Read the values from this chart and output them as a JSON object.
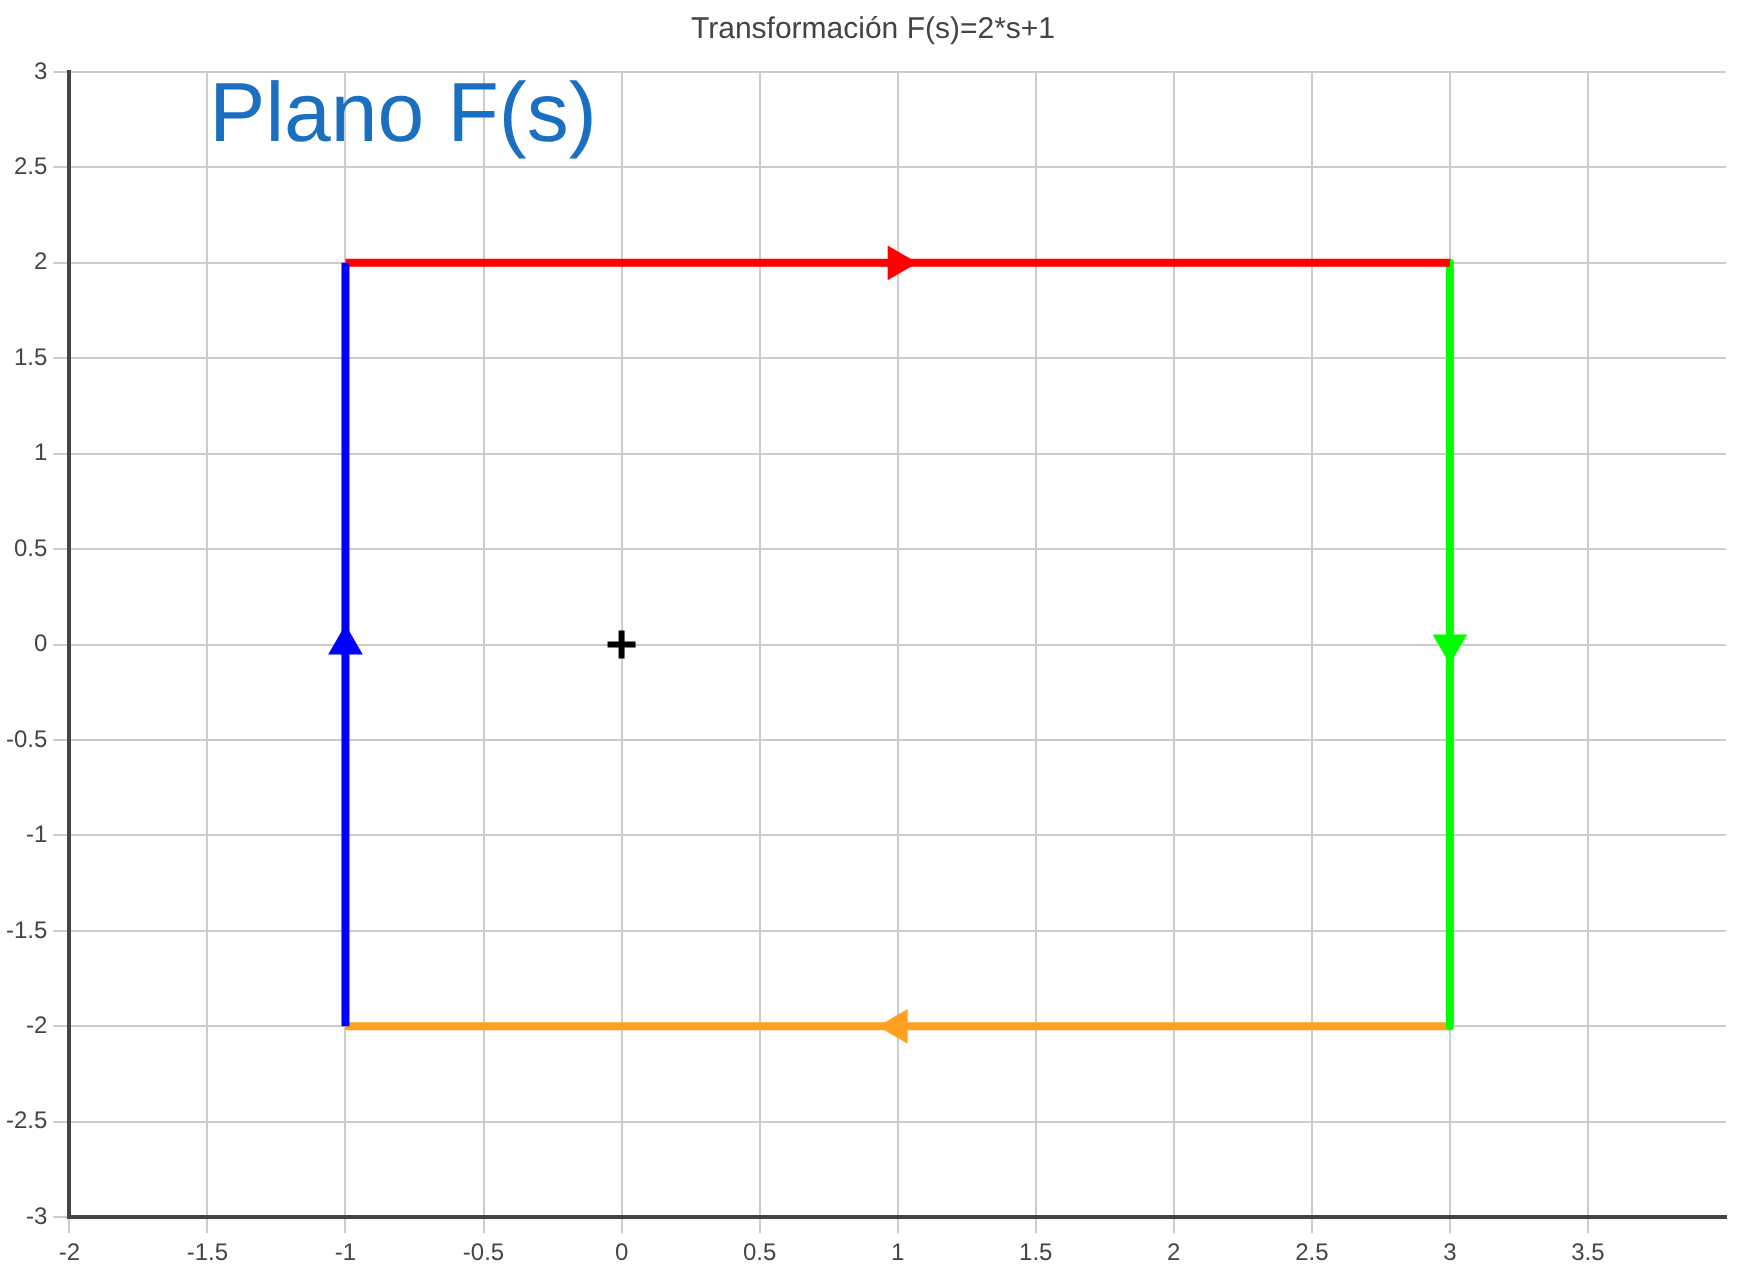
{
  "chart_data": {
    "type": "line",
    "title": "Transformación F(s)=2*s+1",
    "annotations": [
      "Plano F(s)"
    ],
    "xlim": [
      -2,
      4
    ],
    "xticks": [
      -2,
      -1.5,
      -1,
      -0.5,
      0,
      0.5,
      1,
      1.5,
      2,
      2.5,
      3,
      3.5
    ],
    "ylim": [
      -3,
      3
    ],
    "yticks": [
      -3,
      -2.5,
      -2,
      -1.5,
      -1,
      -0.5,
      0,
      0.5,
      1,
      1.5,
      2,
      2.5,
      3
    ],
    "grid": true,
    "legend": false,
    "series": [
      {
        "color": "#0000ff",
        "x": [
          -1,
          -1
        ],
        "values": [
          -2,
          2
        ]
      },
      {
        "color": "#ff0000",
        "x": [
          -1,
          3
        ],
        "values": [
          2,
          2
        ]
      },
      {
        "color": "#00ff00",
        "x": [
          3,
          3
        ],
        "values": [
          2,
          -2
        ]
      },
      {
        "color": "#ffa020",
        "x": [
          3,
          -1
        ],
        "values": [
          -2,
          -2
        ]
      },
      {
        "type": "scatter",
        "color": "#0000ff",
        "marker": "triangle",
        "x": [
          -1
        ],
        "values": [
          0
        ]
      },
      {
        "type": "scatter",
        "color": "#ff0000",
        "marker": "triangle",
        "x": [
          1
        ],
        "values": [
          2
        ]
      },
      {
        "type": "scatter",
        "color": "#00ff00",
        "marker": "triangle",
        "x": [
          3
        ],
        "values": [
          0
        ]
      },
      {
        "type": "scatter",
        "color": "#ffa020",
        "marker": "triangle",
        "x": [
          1
        ],
        "values": [
          -2
        ]
      },
      {
        "type": "scatter",
        "color": "#000000",
        "marker": "cross",
        "x": [
          0
        ],
        "values": [
          0
        ]
      }
    ]
  }
}
